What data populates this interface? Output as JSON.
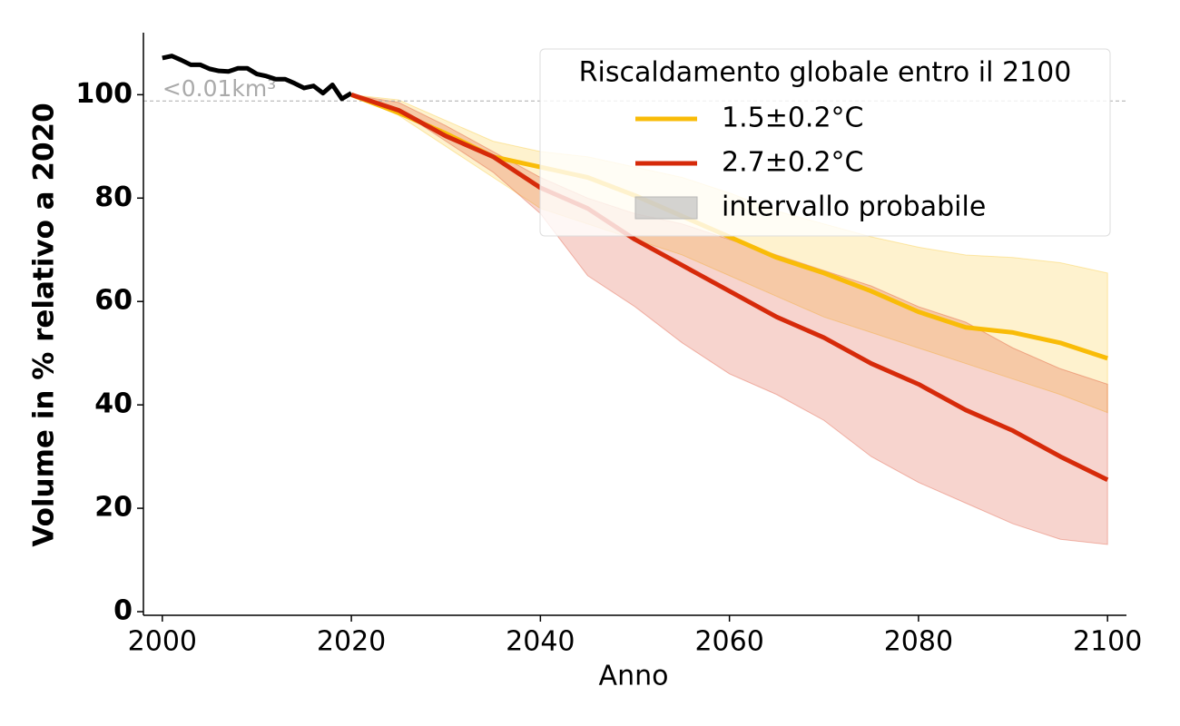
{
  "chart_data": {
    "type": "line",
    "xlabel": "Anno",
    "ylabel": "Volume in % relativo a 2020",
    "xlim": [
      1998,
      2102
    ],
    "ylim": [
      -0.7,
      112
    ],
    "xticks": [
      2000,
      2020,
      2040,
      2060,
      2080,
      2100
    ],
    "yticks": [
      0,
      20,
      40,
      60,
      80,
      100
    ],
    "legend_title": "Riscaldamento globale entro il 2100",
    "band_label": "intervallo probabile",
    "band_legend_color": "#b8b8b8",
    "legend": "upper right",
    "annotation": {
      "text": "<0.01km³",
      "value": 98.8,
      "color": "#aaaaaa"
    },
    "series": [
      {
        "color": "#000000",
        "x": [
          2000,
          2001,
          2002,
          2003,
          2004,
          2005,
          2006,
          2007,
          2008,
          2009,
          2010,
          2011,
          2012,
          2013,
          2014,
          2015,
          2016,
          2017,
          2018,
          2019,
          2020
        ],
        "values": [
          107.1,
          107.5,
          106.7,
          105.8,
          105.8,
          105,
          104.6,
          104.5,
          105.1,
          105.1,
          104,
          103.6,
          103,
          103,
          102.2,
          101.3,
          101.7,
          100.3,
          101.9,
          99.2,
          100.3
        ]
      },
      {
        "name": "1.5±0.2°C",
        "color": "#f9bc08",
        "x": [
          2020,
          2025,
          2030,
          2035,
          2040,
          2045,
          2050,
          2055,
          2060,
          2065,
          2070,
          2075,
          2080,
          2085,
          2090,
          2095,
          2100
        ],
        "values": [
          100,
          96.5,
          92.5,
          88,
          86,
          84,
          80.5,
          76.5,
          72.5,
          68.5,
          65.5,
          62,
          58,
          55,
          54,
          52,
          49
        ],
        "lower": [
          100,
          96,
          90,
          84,
          78,
          75,
          72,
          69,
          65,
          61,
          57,
          54,
          51,
          48,
          45,
          42,
          38.5
        ],
        "upper": [
          100,
          99,
          95,
          91,
          89,
          88,
          86,
          84,
          81,
          77.5,
          75,
          72.5,
          70.5,
          69,
          68.5,
          67.5,
          65.5
        ]
      },
      {
        "name": "2.7±0.2°C",
        "color": "#d62a0a",
        "x": [
          2020,
          2025,
          2030,
          2035,
          2040,
          2045,
          2050,
          2055,
          2060,
          2065,
          2070,
          2075,
          2080,
          2085,
          2090,
          2095,
          2100
        ],
        "values": [
          100,
          97,
          92,
          88,
          82,
          78,
          72,
          67,
          62,
          57,
          53,
          48,
          44,
          39,
          35,
          30,
          25.5
        ],
        "lower": [
          100,
          97,
          91,
          85,
          77,
          65,
          59,
          52,
          46,
          42,
          37,
          30,
          25,
          21,
          17,
          14,
          13
        ],
        "upper": [
          100,
          98.5,
          94,
          89,
          84,
          80,
          77,
          75,
          72,
          69,
          66,
          63,
          59,
          56,
          51,
          47,
          44
        ]
      }
    ]
  }
}
